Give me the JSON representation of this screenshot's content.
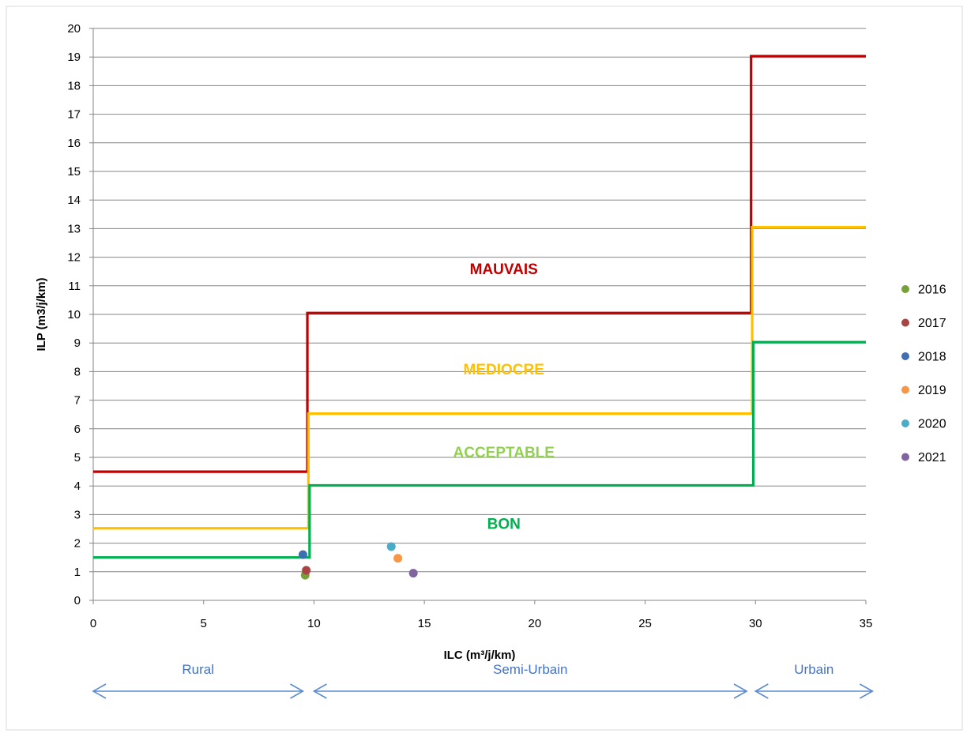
{
  "chart_data": {
    "type": "scatter",
    "xlabel": "ILC (m³/j/km)",
    "ylabel": "ILP (m3/j/km)",
    "xlim": [
      0,
      35
    ],
    "ylim": [
      0,
      20
    ],
    "x_ticks": [
      0,
      5,
      10,
      15,
      20,
      25,
      30,
      35
    ],
    "y_ticks": [
      0,
      1,
      2,
      3,
      4,
      5,
      6,
      7,
      8,
      9,
      10,
      11,
      12,
      13,
      14,
      15,
      16,
      17,
      18,
      19,
      20
    ],
    "grid": "horizontal",
    "legend_position": "right",
    "series": [
      {
        "name": "2016",
        "color": "#77a03a",
        "x": [
          9.6
        ],
        "y": [
          0.88
        ]
      },
      {
        "name": "2017",
        "color": "#a94444",
        "x": [
          9.65
        ],
        "y": [
          1.05
        ]
      },
      {
        "name": "2018",
        "color": "#3f6fb0",
        "x": [
          9.5
        ],
        "y": [
          1.6
        ]
      },
      {
        "name": "2019",
        "color": "#f79646",
        "x": [
          13.8
        ],
        "y": [
          1.47
        ]
      },
      {
        "name": "2020",
        "color": "#4aacc6",
        "x": [
          13.5
        ],
        "y": [
          1.88
        ]
      },
      {
        "name": "2021",
        "color": "#8064a2",
        "x": [
          14.5
        ],
        "y": [
          0.95
        ]
      }
    ],
    "threshold_lines": [
      {
        "color": "#c00000",
        "points": [
          [
            0,
            4.5
          ],
          [
            9.7,
            4.5
          ],
          [
            9.7,
            10.05
          ],
          [
            29.8,
            10.05
          ],
          [
            29.8,
            19.03
          ],
          [
            35,
            19.03
          ]
        ]
      },
      {
        "color": "#ffc000",
        "points": [
          [
            0,
            2.52
          ],
          [
            9.75,
            2.52
          ],
          [
            9.75,
            6.53
          ],
          [
            29.85,
            6.53
          ],
          [
            29.85,
            13.05
          ],
          [
            35,
            13.05
          ]
        ]
      },
      {
        "color": "#00b050",
        "points": [
          [
            0,
            1.5
          ],
          [
            9.8,
            1.5
          ],
          [
            9.8,
            4.02
          ],
          [
            29.9,
            4.02
          ],
          [
            29.9,
            9.03
          ],
          [
            35,
            9.03
          ]
        ]
      }
    ],
    "zone_labels": [
      {
        "text": "MAUVAIS",
        "x": 18.6,
        "y": 11.6,
        "color": "#c00000"
      },
      {
        "text": "MEDIOCRE",
        "x": 18.6,
        "y": 8.1,
        "color": "#ffc000"
      },
      {
        "text": "ACCEPTABLE",
        "x": 18.6,
        "y": 5.2,
        "color": "#92d050"
      },
      {
        "text": "BON",
        "x": 18.6,
        "y": 2.7,
        "color": "#00b050"
      }
    ],
    "region_arrows": [
      {
        "label": "Rural",
        "x_from": 0,
        "x_to": 9.5
      },
      {
        "label": "Semi-Urbain",
        "x_from": 10,
        "x_to": 29.6
      },
      {
        "label": "Urbain",
        "x_from": 30,
        "x_to": 35.3
      }
    ],
    "colors": {
      "grid": "#868686",
      "axis_text": "#000000",
      "arrow": "#5b8bd0",
      "region_text": "#4472c4"
    }
  }
}
